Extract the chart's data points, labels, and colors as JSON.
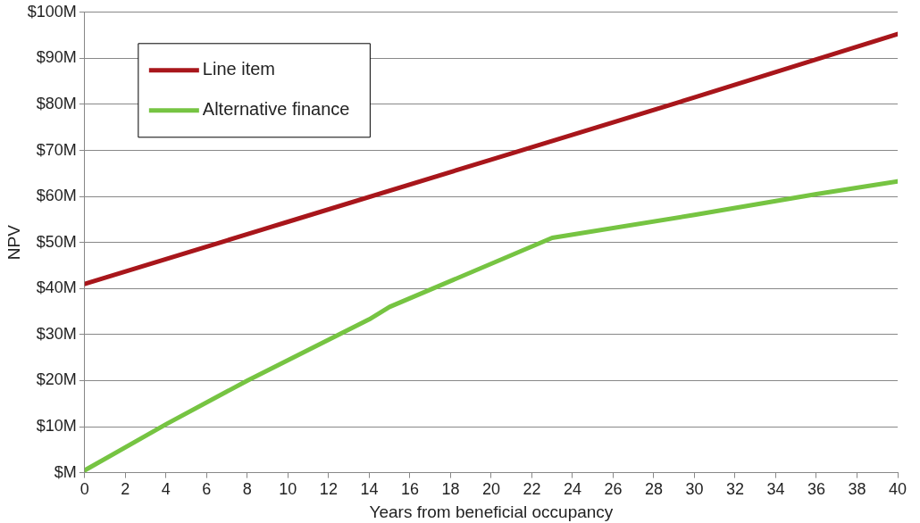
{
  "chart_data": {
    "type": "line",
    "xlabel": "Years from beneficial occupancy",
    "ylabel": "NPV",
    "xlim": [
      0,
      40
    ],
    "xticks": [
      0,
      2,
      4,
      6,
      8,
      10,
      12,
      14,
      16,
      18,
      20,
      22,
      24,
      26,
      28,
      30,
      32,
      34,
      36,
      38,
      40
    ],
    "ylim": [
      0,
      100
    ],
    "yticks": [
      {
        "value": 0,
        "label": "$M"
      },
      {
        "value": 10,
        "label": "$10M"
      },
      {
        "value": 20,
        "label": "$20M"
      },
      {
        "value": 30,
        "label": "$30M"
      },
      {
        "value": 40,
        "label": "$40M"
      },
      {
        "value": 50,
        "label": "$50M"
      },
      {
        "value": 60,
        "label": "$60M"
      },
      {
        "value": 70,
        "label": "$70M"
      },
      {
        "value": 80,
        "label": "$80M"
      },
      {
        "value": 90,
        "label": "$90M"
      },
      {
        "value": 100,
        "label": "$100M"
      }
    ],
    "grid": "y",
    "legend": "top left",
    "marker": "none",
    "line_style": "solid",
    "series": [
      {
        "name": "Line item",
        "color": "#a8161b",
        "x": [
          0,
          10,
          20,
          30,
          40
        ],
        "values": [
          41,
          54.5,
          68,
          81.5,
          95.3
        ]
      },
      {
        "name": "Alternative finance",
        "color": "#76c442",
        "x": [
          0,
          4,
          8,
          14,
          15,
          23,
          30,
          36,
          40
        ],
        "values": [
          0.5,
          10.5,
          20,
          33.3,
          36,
          51,
          56,
          60.5,
          63.3
        ]
      }
    ]
  }
}
